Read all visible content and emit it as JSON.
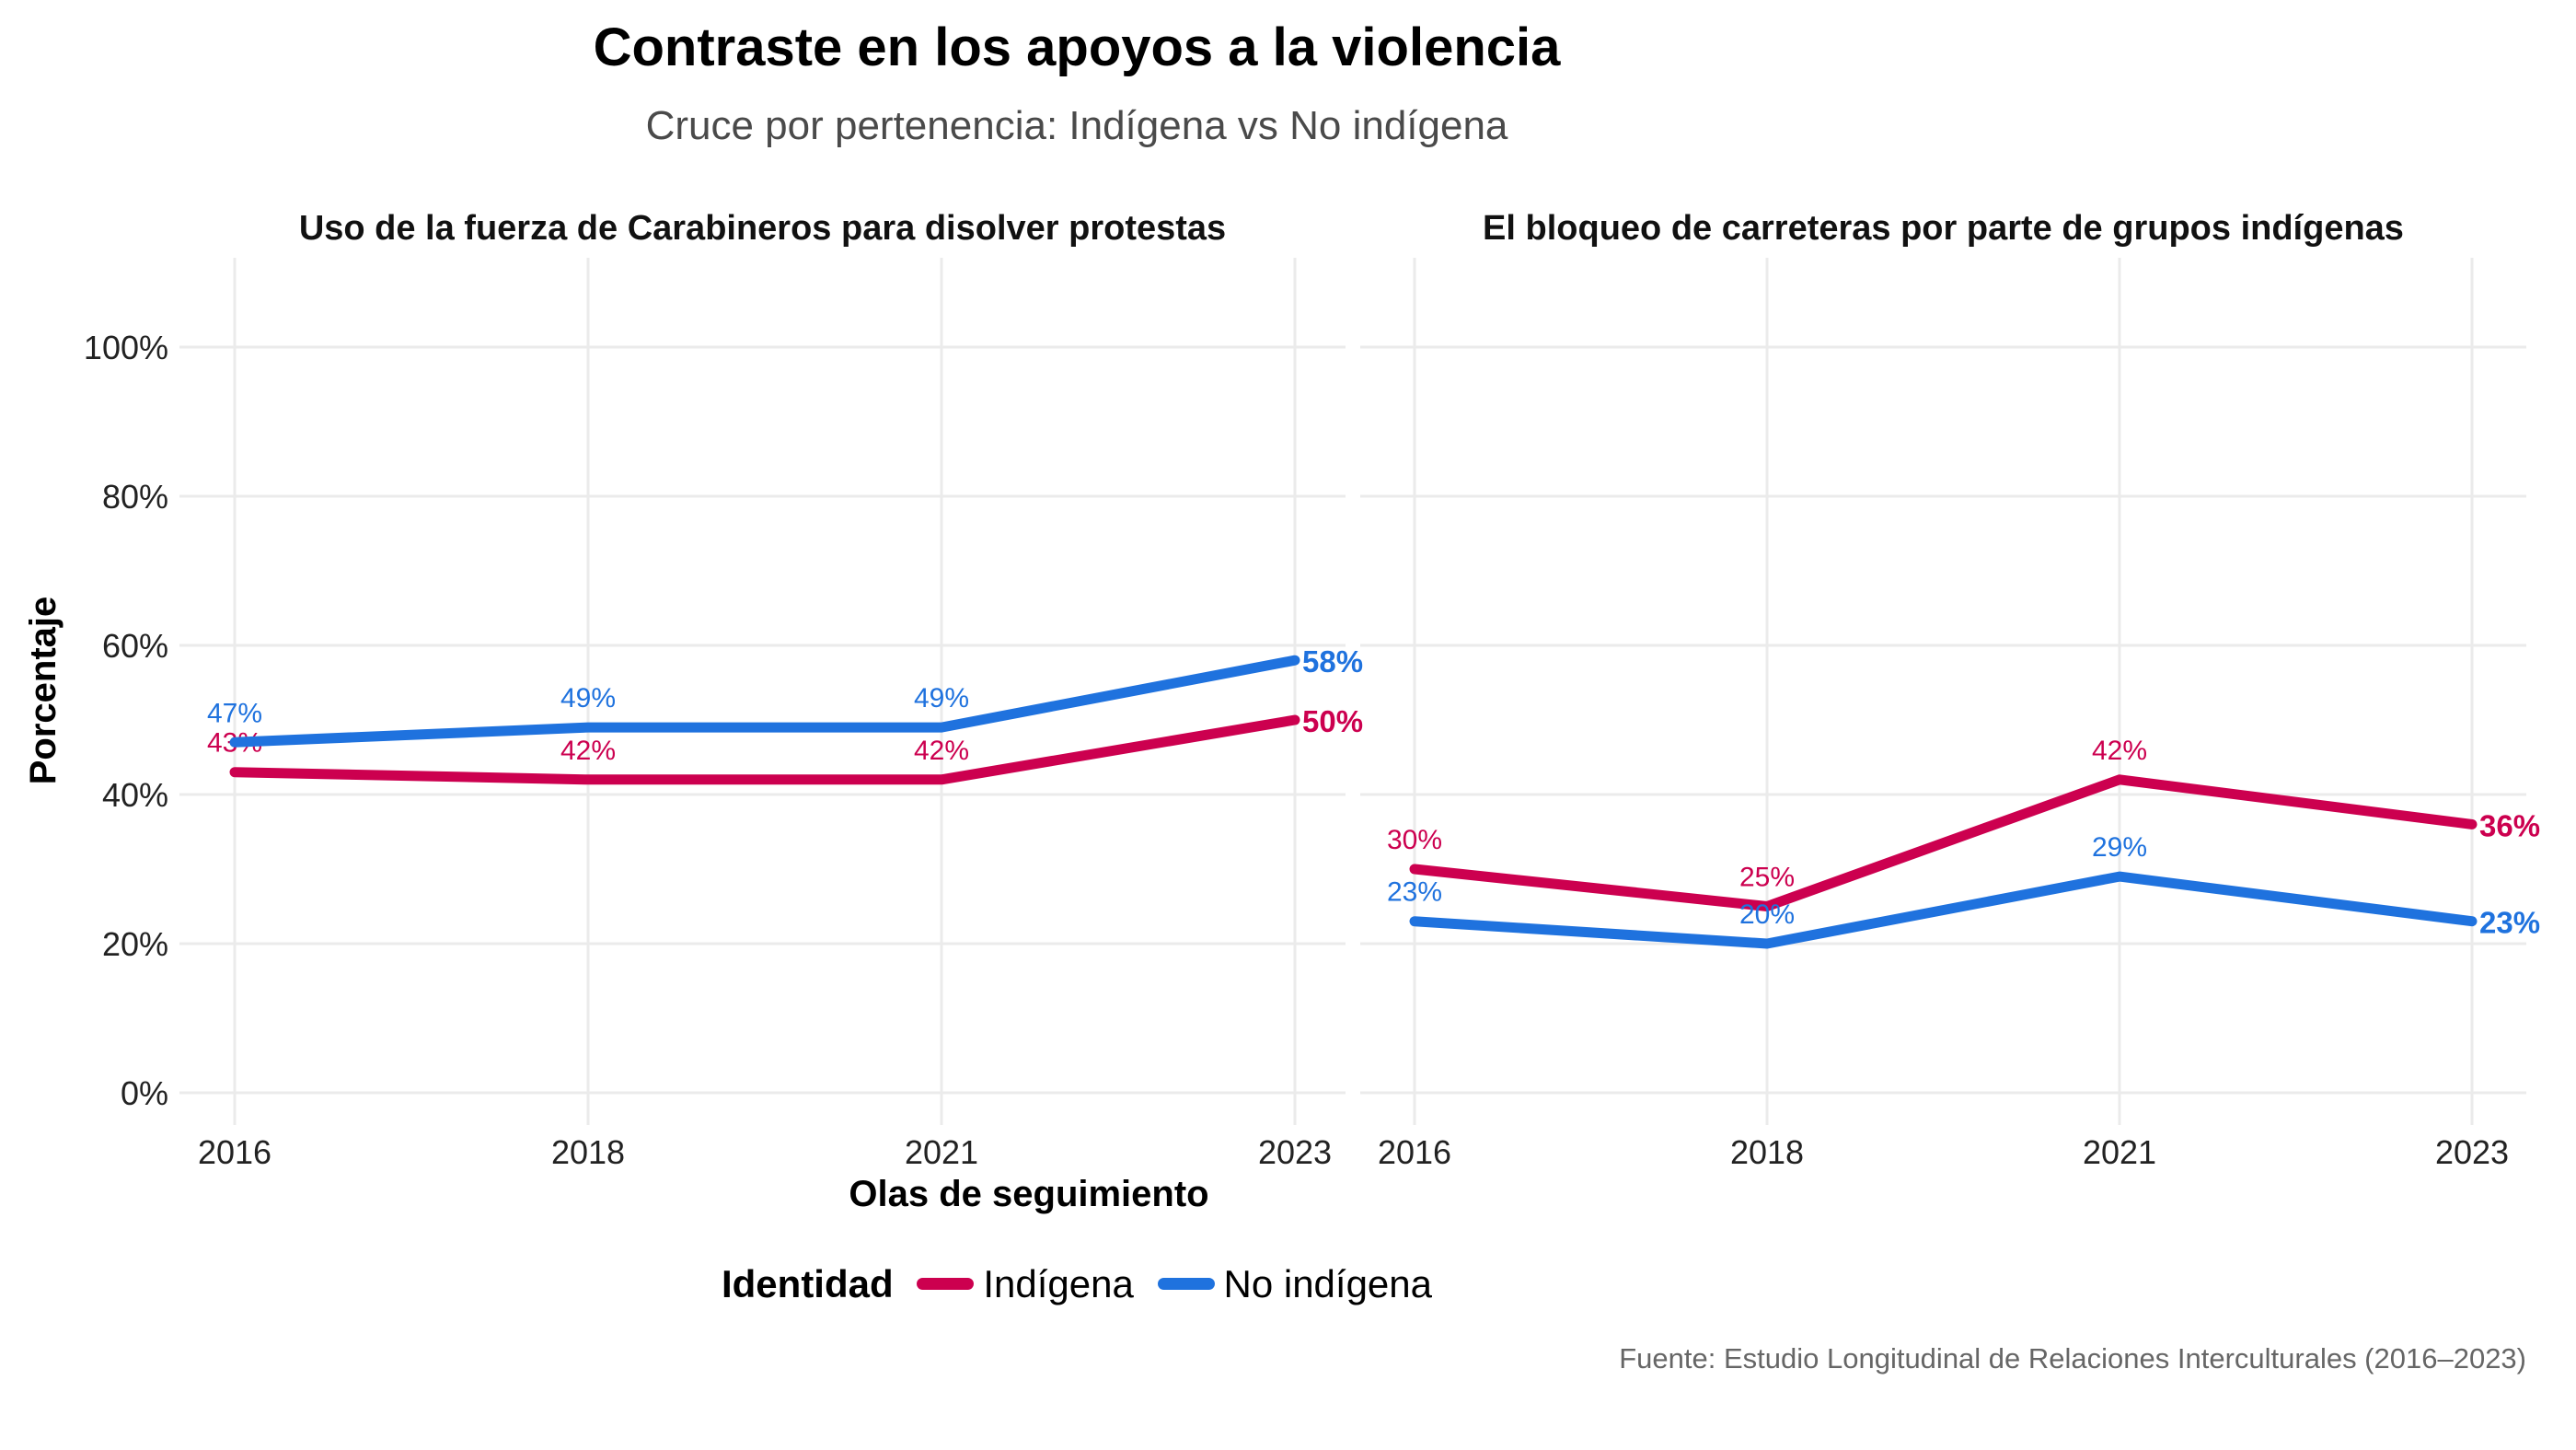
{
  "header": {
    "title": "Contraste en los apoyos a la violencia",
    "subtitle": "Cruce por pertenencia: Indígena vs No indígena"
  },
  "legend": {
    "title": "Identidad",
    "items": [
      {
        "label": "Indígena",
        "color": "#CC004F"
      },
      {
        "label": "No indígena",
        "color": "#1F72DE"
      }
    ]
  },
  "caption": "Fuente: Estudio Longitudinal de Relaciones Interculturales (2016–2023)",
  "chart_data": {
    "type": "line",
    "title": "Contraste en los apoyos a la violencia",
    "subtitle": "Cruce por pertenencia: Indígena vs No indígena",
    "xlabel": "Olas de seguimiento",
    "ylabel": "Porcentaje",
    "x": [
      "2016",
      "2018",
      "2021",
      "2023"
    ],
    "ylim": [
      0,
      100
    ],
    "yticks": [
      "0%",
      "20%",
      "40%",
      "60%",
      "80%",
      "100%"
    ],
    "grid": true,
    "legend_position": "bottom",
    "panels": [
      {
        "title": "Uso de la fuerza de Carabineros para disolver protestas",
        "series": [
          {
            "name": "Indígena",
            "color": "#CC004F",
            "values": [
              43,
              42,
              42,
              50
            ],
            "labels": [
              "43%",
              "42%",
              "42%",
              "50%"
            ]
          },
          {
            "name": "No indígena",
            "color": "#1F72DE",
            "values": [
              47,
              49,
              49,
              58
            ],
            "labels": [
              "47%",
              "49%",
              "49%",
              "58%"
            ]
          }
        ]
      },
      {
        "title": "El bloqueo de carreteras por parte de grupos indígenas",
        "series": [
          {
            "name": "Indígena",
            "color": "#CC004F",
            "values": [
              30,
              25,
              42,
              36
            ],
            "labels": [
              "30%",
              "25%",
              "42%",
              "36%"
            ]
          },
          {
            "name": "No indígena",
            "color": "#1F72DE",
            "values": [
              23,
              20,
              29,
              23
            ],
            "labels": [
              "23%",
              "20%",
              "29%",
              "23%"
            ]
          }
        ]
      }
    ]
  }
}
